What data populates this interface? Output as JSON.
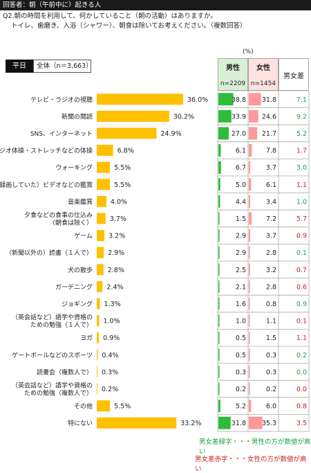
{
  "header": {
    "title": "回答者：朝（午前中に）起きる人"
  },
  "question": {
    "line1": "Q2.朝の時間を利用して、何かしていること（朝の活動）はありますか。",
    "line2": "トイレ、歯磨き、入浴（シャワー）、朝食は除いてお考えください。（複数回答）"
  },
  "unit": "(%)",
  "segment": {
    "label": "平日",
    "total_label": "全体（n＝3,663）"
  },
  "columns": {
    "male": {
      "title": "男性",
      "n": "n=2209"
    },
    "female": {
      "title": "女性",
      "n": "n=1454"
    },
    "diff": {
      "title": "男女差"
    }
  },
  "colors": {
    "bar": "#ffc000",
    "male_bar": "#2ebd3a",
    "female_bar": "#ff9999",
    "green_text": "#1aa343",
    "red_text": "#cc2222"
  },
  "chart_data": {
    "type": "bar",
    "orientation": "horizontal",
    "categories": [
      "テレビ・ラジオの視聴",
      "新聞の閲読",
      "SNS、インターネット",
      "ラジオ体操・ストレッチなどの体操",
      "ウォーキング",
      "（録画していた）ビデオなどの鑑賞",
      "音楽鑑賞",
      "夕食などの食事の仕込み|（朝食は除く）",
      "ゲーム",
      "（新聞以外の）読書（１人で）",
      "犬の散歩",
      "ガーデニング",
      "ジョギング",
      "（英会話など）語学や資格の|ための勉強（１人で）",
      "ヨガ",
      "ゲートボールなどのスポーツ",
      "読書会（複数人で）",
      "（英会話など）語学や資格の|ための勉強（複数人で）",
      "その他",
      "特にない"
    ],
    "values": [
      36.0,
      30.2,
      24.9,
      6.8,
      5.5,
      5.5,
      4.0,
      3.7,
      3.2,
      2.9,
      2.8,
      2.4,
      1.3,
      1.0,
      0.9,
      0.4,
      0.3,
      0.2,
      5.5,
      33.2
    ],
    "value_labels": [
      "36.0%",
      "30.2%",
      "24.9%",
      "6.8%",
      "5.5%",
      "5.5%",
      "4.0%",
      "3.7%",
      "3.2%",
      "2.9%",
      "2.8%",
      "2.4%",
      "1.3%",
      "1.0%",
      "0.9%",
      "0.4%",
      "0.3%",
      "0.2%",
      "5.5%",
      "33.2%"
    ],
    "male": [
      38.8,
      33.9,
      27.0,
      6.1,
      6.7,
      5.0,
      4.4,
      1.5,
      2.9,
      2.9,
      2.5,
      2.1,
      1.6,
      1.0,
      0.5,
      0.5,
      0.3,
      0.2,
      5.2,
      31.8
    ],
    "female": [
      31.8,
      24.6,
      21.7,
      7.8,
      3.7,
      6.1,
      3.4,
      7.2,
      3.7,
      2.8,
      3.2,
      2.8,
      0.8,
      1.1,
      1.5,
      0.3,
      0.3,
      0.2,
      6.0,
      35.3
    ],
    "diff": [
      7.1,
      9.2,
      5.2,
      1.7,
      3.0,
      1.1,
      1.0,
      5.7,
      0.9,
      0.1,
      0.7,
      0.6,
      0.9,
      0.1,
      1.1,
      0.2,
      0.0,
      0.0,
      0.8,
      3.5
    ],
    "diff_color": [
      "green",
      "green",
      "green",
      "red",
      "green",
      "red",
      "green",
      "red",
      "red",
      "green",
      "red",
      "red",
      "green",
      "red",
      "red",
      "green",
      "green",
      "red",
      "red",
      "red"
    ],
    "male_labels": [
      "38.8",
      "33.9",
      "27.0",
      "6.1",
      "6.7",
      "5.0",
      "4.4",
      "1.5",
      "2.9",
      "2.9",
      "2.5",
      "2.1",
      "1.6",
      "1.0",
      "0.5",
      "0.5",
      "0.3",
      "0.2",
      "5.2",
      "31.8"
    ],
    "female_labels": [
      "31.8",
      "24.6",
      "21.7",
      "7.8",
      "3.7",
      "6.1",
      "3.4",
      "7.2",
      "3.7",
      "2.8",
      "3.2",
      "2.8",
      "0.8",
      "1.1",
      "1.5",
      "0.3",
      "0.3",
      "0.2",
      "6.0",
      "35.3"
    ],
    "diff_labels": [
      "7.1",
      "9.2",
      "5.2",
      "1.7",
      "3.0",
      "1.1",
      "1.0",
      "5.7",
      "0.9",
      "0.1",
      "0.7",
      "0.6",
      "0.9",
      "0.1",
      "1.1",
      "0.2",
      "0.0",
      "0.0",
      "0.8",
      "3.5"
    ]
  },
  "legend": {
    "green_note": "男女差緑字・・・男性の方が数値が高い",
    "red_note": "男女差赤字・・・女性の方が数値が高い"
  }
}
